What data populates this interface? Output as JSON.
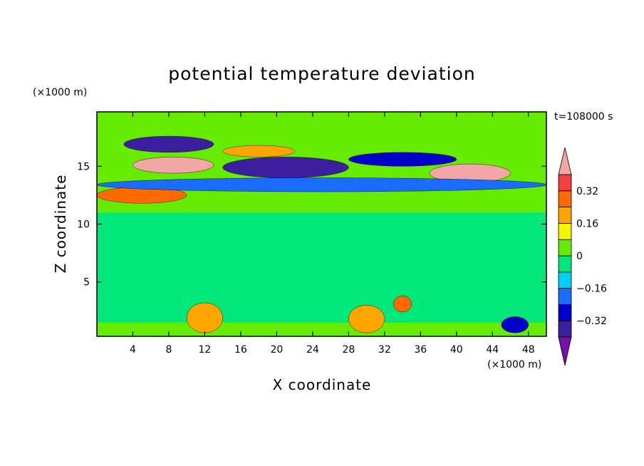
{
  "chart_data": {
    "type": "heatmap",
    "title": "potential temperature deviation",
    "xlabel": "X coordinate",
    "ylabel": "Z coordinate",
    "x_unit": "(×1000 m)",
    "y_unit": "(×1000 m)",
    "time_label": "t=108000 s",
    "x_range": [
      0,
      50
    ],
    "y_range": [
      0.3,
      19.7
    ],
    "x_ticks": [
      4,
      8,
      12,
      16,
      20,
      24,
      28,
      32,
      36,
      40,
      44,
      48
    ],
    "y_ticks": [
      5,
      10,
      15
    ],
    "colorbar": {
      "levels": [
        -0.4,
        -0.32,
        -0.24,
        -0.16,
        -0.08,
        0,
        0.08,
        0.16,
        0.24,
        0.32,
        0.4
      ],
      "labels": [
        "0.32",
        "0.16",
        "0",
        "−0.16",
        "−0.32"
      ],
      "label_values": [
        0.32,
        0.16,
        0,
        -0.16,
        -0.32
      ],
      "colors": [
        "#7a0fa8",
        "#3c1f9f",
        "#0000c8",
        "#1a6cff",
        "#00d0f5",
        "#00e87a",
        "#66ec00",
        "#f5f500",
        "#ffa500",
        "#ff6a00",
        "#f04040",
        "#f2a6a6"
      ],
      "extend": "both"
    },
    "features": [
      {
        "value": -0.36,
        "x": [
          3,
          13
        ],
        "z": [
          16.2,
          17.6
        ]
      },
      {
        "value": -0.36,
        "x": [
          14,
          28
        ],
        "z": [
          14.0,
          15.8
        ]
      },
      {
        "value": -0.32,
        "x": [
          28,
          40
        ],
        "z": [
          15.0,
          16.2
        ]
      },
      {
        "value": 0.4,
        "x": [
          4,
          13
        ],
        "z": [
          14.4,
          15.8
        ]
      },
      {
        "value": 0.4,
        "x": [
          37,
          46
        ],
        "z": [
          13.6,
          15.2
        ]
      },
      {
        "value": 0.24,
        "x": [
          0,
          10
        ],
        "z": [
          11.8,
          13.2
        ]
      },
      {
        "value": 0.2,
        "x": [
          14,
          22
        ],
        "z": [
          15.8,
          16.8
        ]
      },
      {
        "value": -0.2,
        "x": [
          0,
          50
        ],
        "z": [
          12.8,
          14.0
        ]
      },
      {
        "value": 0.24,
        "x": [
          33,
          35
        ],
        "z": [
          2.4,
          3.8
        ]
      },
      {
        "value": -0.3,
        "x": [
          45,
          48
        ],
        "z": [
          0.6,
          2.0
        ]
      },
      {
        "value": 0.16,
        "x": [
          10,
          14
        ],
        "z": [
          0.6,
          3.2
        ]
      },
      {
        "value": 0.16,
        "x": [
          28,
          32
        ],
        "z": [
          0.6,
          3.0
        ]
      }
    ]
  }
}
